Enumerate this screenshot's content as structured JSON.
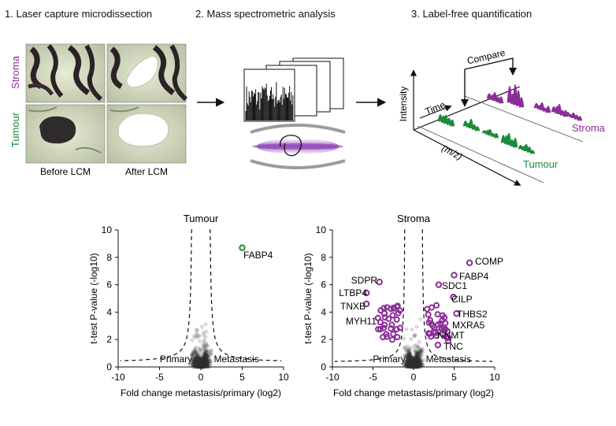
{
  "colors": {
    "stroma": "#8a2e97",
    "tumour": "#1d8a3a",
    "background_points": "#333333",
    "axis": "#111111"
  },
  "steps": [
    {
      "number": "1.",
      "title": "Laser capture microdissection"
    },
    {
      "number": "2.",
      "title": "Mass spectrometric analysis"
    },
    {
      "number": "3.",
      "title": "Label-free quantification"
    }
  ],
  "lcm": {
    "row_labels": [
      "Stroma",
      "Tumour"
    ],
    "column_labels": [
      "Before LCM",
      "After LCM"
    ]
  },
  "lfq": {
    "axis_intensity": "Intensity",
    "axis_time": "Time",
    "axis_mz": "(m/z)",
    "compare_label": "Compare",
    "stroma_label": "Stroma",
    "tumour_label": "Tumour"
  },
  "chart_data": [
    {
      "type": "scatter",
      "title": "Tumour",
      "xlabel": "Fold change metastasis/primary (log2)",
      "ylabel": "t-test P-value (-log10)",
      "xlim": [
        -10,
        10
      ],
      "ylim": [
        0,
        10
      ],
      "xticks": [
        "-10",
        "-5",
        "0",
        "5",
        "10"
      ],
      "yticks": [
        "0",
        "2",
        "4",
        "6",
        "8",
        "10"
      ],
      "region_labels": {
        "left": "Primary",
        "right": "Metastasis"
      },
      "highlight": [
        {
          "label": "FABP4",
          "x": 5.0,
          "y": 8.7
        }
      ]
    },
    {
      "type": "scatter",
      "title": "Stroma",
      "xlabel": "Fold change metastasis/primary (log2)",
      "ylabel": "t-test P-value (-log10)",
      "xlim": [
        -10,
        10
      ],
      "ylim": [
        0,
        10
      ],
      "xticks": [
        "-10",
        "-5",
        "0",
        "5",
        "10"
      ],
      "yticks": [
        "0",
        "2",
        "4",
        "6",
        "8",
        "10"
      ],
      "region_labels": {
        "left": "Primary",
        "right": "Metastasis"
      },
      "highlight": [
        {
          "label": "COMP",
          "x": 6.9,
          "y": 7.6
        },
        {
          "label": "FABP4",
          "x": 5.0,
          "y": 6.7
        },
        {
          "label": "SDC1",
          "x": 3.1,
          "y": 6.0
        },
        {
          "label": "CILP",
          "x": 4.9,
          "y": 5.1
        },
        {
          "label": "THBS2",
          "x": 5.3,
          "y": 3.9
        },
        {
          "label": "MXRA5",
          "x": 3.9,
          "y": 3.2
        },
        {
          "label": "NNMT",
          "x": 2.7,
          "y": 2.5
        },
        {
          "label": "TNC",
          "x": 3.0,
          "y": 1.6
        },
        {
          "label": "SDPR",
          "x": -4.2,
          "y": 6.2
        },
        {
          "label": "LTBP4",
          "x": -5.8,
          "y": 5.4
        },
        {
          "label": "TNXB",
          "x": -5.8,
          "y": 4.6
        },
        {
          "label": "MYH11",
          "x": -3.6,
          "y": 3.9
        }
      ]
    }
  ]
}
